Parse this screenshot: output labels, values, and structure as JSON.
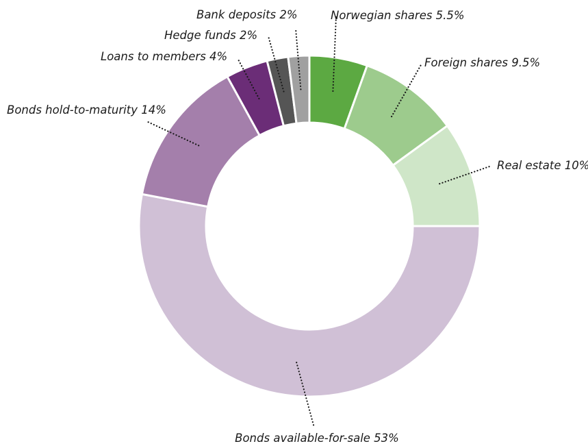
{
  "chart_data": {
    "type": "pie",
    "donut": true,
    "title": "",
    "legend": "none",
    "slices": [
      {
        "label": "Norwegian shares 5.5%",
        "value": 5.5,
        "color": "#5ca942"
      },
      {
        "label": "Foreign shares  9.5%",
        "value": 9.5,
        "color": "#9dcb8d"
      },
      {
        "label": "Real estate 10%",
        "value": 10,
        "color": "#cfe6c8"
      },
      {
        "label": "Bonds available-for-sale 53%",
        "value": 53,
        "color": "#d0c0d6"
      },
      {
        "label": "Bonds hold-to-maturity 14%",
        "value": 14,
        "color": "#a47fab"
      },
      {
        "label": "Loans to members 4%",
        "value": 4,
        "color": "#6b2d77"
      },
      {
        "label": "Hedge funds 2%",
        "value": 2,
        "color": "#555555"
      },
      {
        "label": "Bank deposits 2%",
        "value": 2,
        "color": "#a0a0a0"
      }
    ]
  }
}
